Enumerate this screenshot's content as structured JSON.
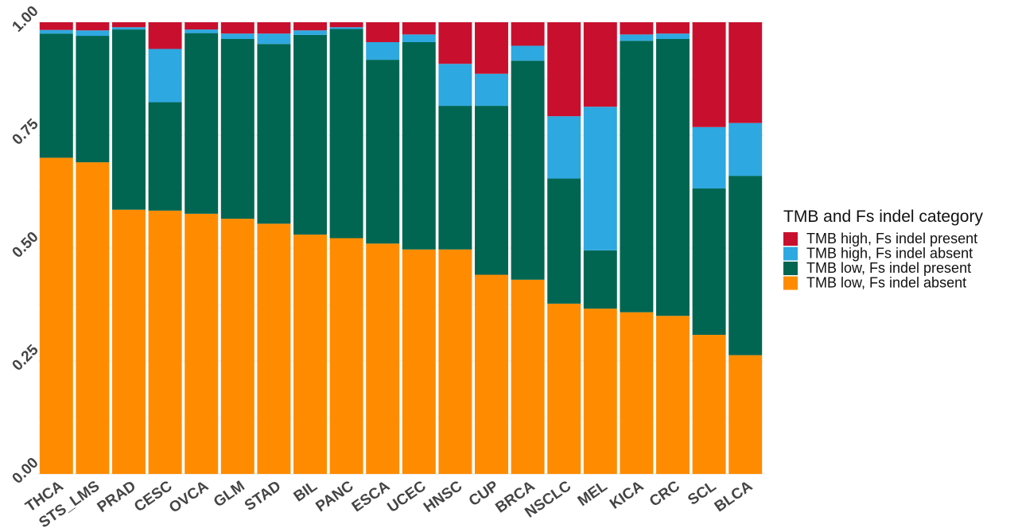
{
  "chart_data": {
    "type": "bar",
    "stacked": true,
    "ylim": [
      0,
      1
    ],
    "yticks": [
      "0.00",
      "0.25",
      "0.50",
      "0.75",
      "1.00"
    ],
    "grid": true,
    "legend_position": "right",
    "legend_title": "TMB and Fs indel category",
    "categories": [
      "THCA",
      "STS_LMS",
      "PRAD",
      "CESC",
      "OVCA",
      "GLM",
      "STAD",
      "BIL",
      "PANC",
      "ESCA",
      "UCEC",
      "HNSC",
      "CUP",
      "BRCA",
      "NSCLC",
      "MEL",
      "KICA",
      "CRC",
      "SCL",
      "BLCA"
    ],
    "series": [
      {
        "name": "TMB low, Fs indel absent",
        "color": "#FF8C00",
        "values": [
          0.7,
          0.69,
          0.585,
          0.583,
          0.576,
          0.565,
          0.554,
          0.53,
          0.522,
          0.51,
          0.497,
          0.497,
          0.441,
          0.43,
          0.377,
          0.366,
          0.358,
          0.35,
          0.308,
          0.263
        ]
      },
      {
        "name": "TMB low, Fs indel present",
        "color": "#006652",
        "values": [
          0.275,
          0.28,
          0.399,
          0.24,
          0.4,
          0.398,
          0.398,
          0.442,
          0.463,
          0.407,
          0.459,
          0.318,
          0.374,
          0.485,
          0.277,
          0.129,
          0.601,
          0.613,
          0.324,
          0.397
        ]
      },
      {
        "name": "TMB high, Fs indel absent",
        "color": "#2EA8E0",
        "values": [
          0.008,
          0.012,
          0.005,
          0.118,
          0.008,
          0.012,
          0.023,
          0.01,
          0.004,
          0.039,
          0.017,
          0.093,
          0.071,
          0.033,
          0.138,
          0.318,
          0.014,
          0.012,
          0.136,
          0.117
        ]
      },
      {
        "name": "TMB high, Fs indel present",
        "color": "#C8102E",
        "values": [
          0.017,
          0.018,
          0.011,
          0.059,
          0.016,
          0.025,
          0.025,
          0.018,
          0.011,
          0.044,
          0.027,
          0.092,
          0.114,
          0.052,
          0.208,
          0.187,
          0.027,
          0.025,
          0.232,
          0.223
        ]
      }
    ]
  }
}
